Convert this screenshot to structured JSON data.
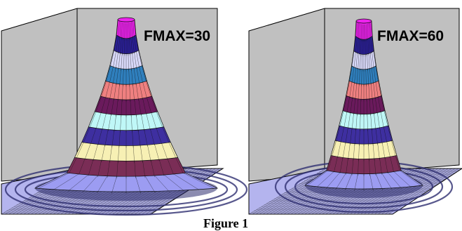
{
  "figure": {
    "caption": "Figure 1"
  },
  "panels": [
    {
      "label": "FMAX=30"
    },
    {
      "label": "FMAX=60"
    }
  ],
  "colors": {
    "wall": "#c0c0c0",
    "floor": "#b4b4ee",
    "floor_shadow": "#2e2e70",
    "mesh": "#101010",
    "bands": [
      "#9c9cf2",
      "#7a2d56",
      "#f7f0b4",
      "#3e2fa0",
      "#bff7f7",
      "#6a1a5c",
      "#ef8080",
      "#2f7fbd",
      "#d8d8f8",
      "#2a1f95",
      "#ee22ee"
    ]
  }
}
